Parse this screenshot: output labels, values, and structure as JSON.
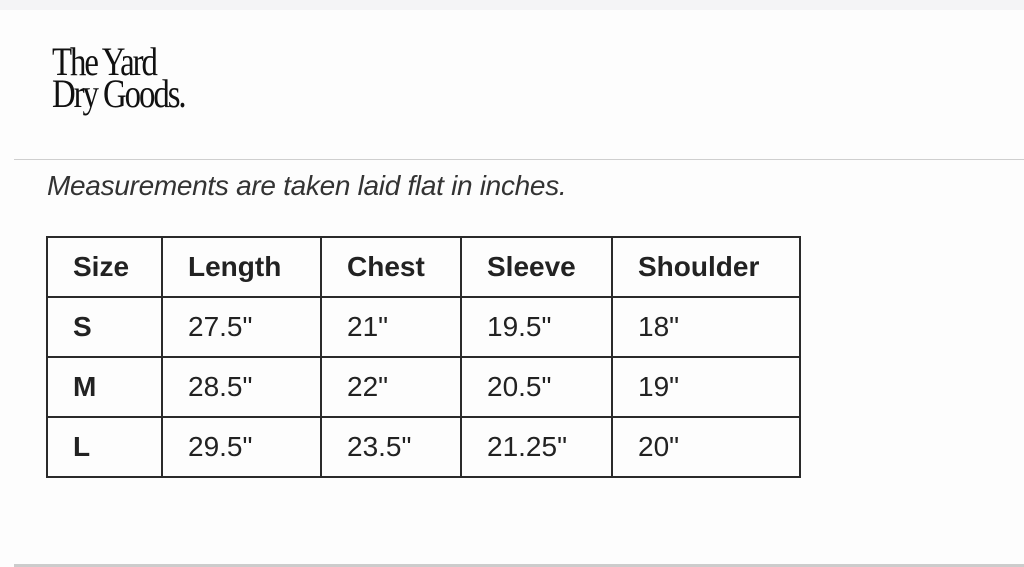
{
  "logo": {
    "line1": "The Yard",
    "line2": "Dry Goods."
  },
  "note": "Measurements are taken laid flat in inches.",
  "table": {
    "headers": [
      "Size",
      "Length",
      "Chest",
      "Sleeve",
      "Shoulder"
    ],
    "rows": [
      [
        "S",
        "27.5\"",
        "21\"",
        "19.5\"",
        "18\""
      ],
      [
        "M",
        "28.5\"",
        "22\"",
        "20.5\"",
        "19\""
      ],
      [
        "L",
        "29.5\"",
        "23.5\"",
        "21.25\"",
        "20\""
      ]
    ]
  }
}
